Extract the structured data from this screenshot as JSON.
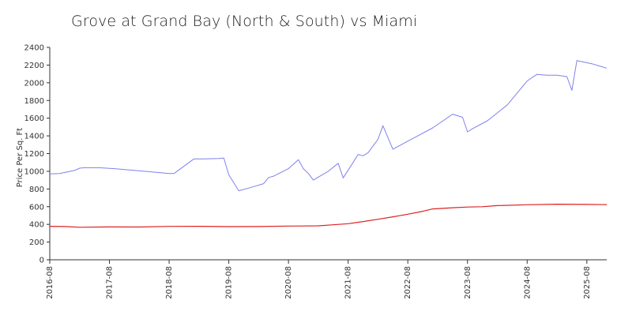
{
  "chart_data": {
    "type": "line",
    "title": "Grove at Grand Bay (North & South) vs Miami",
    "ylabel": "Price Per Sq. Ft",
    "xlabel": "",
    "ylim": [
      0,
      2400
    ],
    "yticks": [
      0,
      200,
      400,
      600,
      800,
      1000,
      1200,
      1400,
      1600,
      1800,
      2000,
      2200,
      2400
    ],
    "xlim": [
      "2016-08",
      "2025-12"
    ],
    "xticks": [
      "2016-08",
      "2017-08",
      "2018-08",
      "2019-08",
      "2020-08",
      "2021-08",
      "2022-08",
      "2023-08",
      "2024-08",
      "2025-08"
    ],
    "grid": false,
    "legend": "none",
    "series": [
      {
        "color": "#8080ee",
        "points": [
          [
            "2016-08",
            970
          ],
          [
            "2016-10",
            975
          ],
          [
            "2017-01",
            1010
          ],
          [
            "2017-02",
            1035
          ],
          [
            "2017-03",
            1040
          ],
          [
            "2017-06",
            1040
          ],
          [
            "2017-09",
            1030
          ],
          [
            "2018-01",
            1010
          ],
          [
            "2018-05",
            990
          ],
          [
            "2018-08",
            975
          ],
          [
            "2018-09",
            975
          ],
          [
            "2019-01",
            1140
          ],
          [
            "2019-03",
            1140
          ],
          [
            "2019-06",
            1145
          ],
          [
            "2019-07",
            1150
          ],
          [
            "2019-08",
            960
          ],
          [
            "2019-10",
            780
          ],
          [
            "2019-12",
            810
          ],
          [
            "2020-03",
            860
          ],
          [
            "2020-04",
            930
          ],
          [
            "2020-05",
            945
          ],
          [
            "2020-08",
            1030
          ],
          [
            "2020-10",
            1130
          ],
          [
            "2020-11",
            1030
          ],
          [
            "2020-12",
            975
          ],
          [
            "2021-01",
            900
          ],
          [
            "2021-04",
            1000
          ],
          [
            "2021-06",
            1090
          ],
          [
            "2021-07",
            925
          ],
          [
            "2021-09",
            1100
          ],
          [
            "2021-10",
            1190
          ],
          [
            "2021-11",
            1175
          ],
          [
            "2021-12",
            1210
          ],
          [
            "2022-02",
            1360
          ],
          [
            "2022-03",
            1515
          ],
          [
            "2022-05",
            1250
          ],
          [
            "2022-09",
            1370
          ],
          [
            "2023-01",
            1490
          ],
          [
            "2023-05",
            1645
          ],
          [
            "2023-07",
            1610
          ],
          [
            "2023-08",
            1445
          ],
          [
            "2023-09",
            1480
          ],
          [
            "2023-12",
            1570
          ],
          [
            "2024-04",
            1750
          ],
          [
            "2024-08",
            2020
          ],
          [
            "2024-09",
            2060
          ],
          [
            "2024-10",
            2095
          ],
          [
            "2024-12",
            2085
          ],
          [
            "2025-02",
            2085
          ],
          [
            "2025-04",
            2070
          ],
          [
            "2025-05",
            1915
          ],
          [
            "2025-06",
            2250
          ],
          [
            "2025-09",
            2215
          ],
          [
            "2025-12",
            2165
          ]
        ]
      },
      {
        "color": "#dd2222",
        "points": [
          [
            "2016-08",
            378
          ],
          [
            "2016-11",
            376
          ],
          [
            "2017-02",
            368
          ],
          [
            "2017-08",
            371
          ],
          [
            "2018-02",
            370
          ],
          [
            "2018-08",
            377
          ],
          [
            "2019-02",
            378
          ],
          [
            "2019-08",
            375
          ],
          [
            "2020-02",
            376
          ],
          [
            "2020-08",
            381
          ],
          [
            "2021-02",
            384
          ],
          [
            "2021-05",
            395
          ],
          [
            "2021-08",
            408
          ],
          [
            "2021-11",
            432
          ],
          [
            "2022-02",
            458
          ],
          [
            "2022-05",
            485
          ],
          [
            "2022-08",
            515
          ],
          [
            "2022-11",
            548
          ],
          [
            "2023-01",
            575
          ],
          [
            "2023-05",
            588
          ],
          [
            "2023-08",
            596
          ],
          [
            "2023-11",
            600
          ],
          [
            "2024-02",
            612
          ],
          [
            "2024-08",
            622
          ],
          [
            "2025-02",
            628
          ],
          [
            "2025-08",
            625
          ],
          [
            "2025-12",
            624
          ]
        ]
      }
    ]
  }
}
